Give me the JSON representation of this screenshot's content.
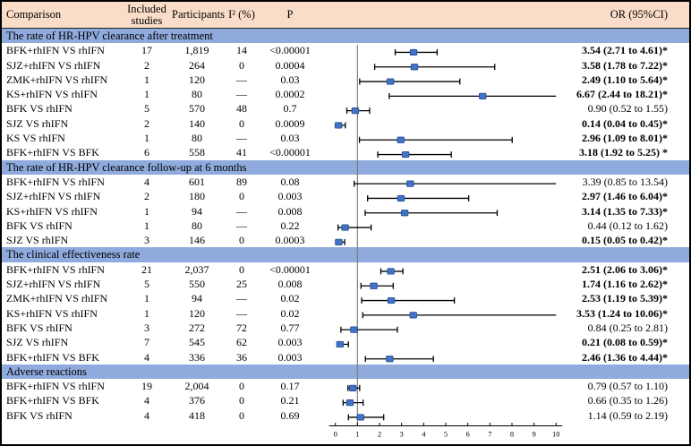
{
  "figure": {
    "columns": {
      "comparison": "Comparison",
      "studies": "Included studies",
      "participants": "Participants",
      "i2": "I² (%)",
      "p": "P",
      "or": "OR (95%CI)"
    },
    "colors": {
      "header_bg": "#FADDC8",
      "band_bg": "#8FAADC",
      "marker": "#4472C4",
      "marker_border": "#1F4E96",
      "ci_line": "#000000",
      "ref_line": "#7F7F7F",
      "axis": "#000000",
      "text": "#000000"
    }
  },
  "chart_data": {
    "type": "forest",
    "x_range": [
      0,
      10
    ],
    "x_ticks": [
      "0",
      "1",
      "2",
      "3",
      "4",
      "5",
      "6",
      "7",
      "8",
      "9",
      "10"
    ],
    "reference_line": 1,
    "legend_position": "none",
    "grid": false,
    "sections": [
      {
        "title": "The rate of HR-HPV clearance after treatment",
        "rows": [
          {
            "comparison": "BFK+rhIFN VS rhIFN",
            "studies": "17",
            "participants": "1,819",
            "i2": "14",
            "p": "<0.00001",
            "or_text": "3.54 (2.71 to 4.61)*",
            "or": 3.54,
            "ci_low": 2.71,
            "ci_high": 4.61,
            "significant": true
          },
          {
            "comparison": "SJZ+rhIFN VS rhIFN",
            "studies": "2",
            "participants": "264",
            "i2": "0",
            "p": "0.0004",
            "or_text": "3.58 (1.78 to 7.22)*",
            "or": 3.58,
            "ci_low": 1.78,
            "ci_high": 7.22,
            "significant": true
          },
          {
            "comparison": "ZMK+rhIFN VS rhIFN",
            "studies": "1",
            "participants": "120",
            "i2": "—",
            "p": "0.03",
            "or_text": "2.49 (1.10 to 5.64)*",
            "or": 2.49,
            "ci_low": 1.1,
            "ci_high": 5.64,
            "significant": true
          },
          {
            "comparison": "KS+rhIFN VS rhIFN",
            "studies": "1",
            "participants": "80",
            "i2": "—",
            "p": "0.0002",
            "or_text": "6.67 (2.44 to 18.21)*",
            "or": 6.67,
            "ci_low": 2.44,
            "ci_high": 18.21,
            "significant": true
          },
          {
            "comparison": "BFK VS rhIFN",
            "studies": "5",
            "participants": "570",
            "i2": "48",
            "p": "0.7",
            "or_text": "0.90 (0.52 to 1.55)",
            "or": 0.9,
            "ci_low": 0.52,
            "ci_high": 1.55,
            "significant": false
          },
          {
            "comparison": "SJZ VS rhIFN",
            "studies": "2",
            "participants": "140",
            "i2": "0",
            "p": "0.0009",
            "or_text": "0.14 (0.04 to 0.45)*",
            "or": 0.14,
            "ci_low": 0.04,
            "ci_high": 0.45,
            "significant": true
          },
          {
            "comparison": "KS VS rhIFN",
            "studies": "1",
            "participants": "80",
            "i2": "—",
            "p": "0.03",
            "or_text": "2.96 (1.09 to 8.01)*",
            "or": 2.96,
            "ci_low": 1.09,
            "ci_high": 8.01,
            "significant": true
          },
          {
            "comparison": "BFK+rhIFN VS BFK",
            "studies": "6",
            "participants": "558",
            "i2": "41",
            "p": "<0.00001",
            "or_text": "3.18 (1.92 to 5.25) *",
            "or": 3.18,
            "ci_low": 1.92,
            "ci_high": 5.25,
            "significant": true
          }
        ]
      },
      {
        "title": "The rate of HR-HPV clearance follow-up at 6 months",
        "rows": [
          {
            "comparison": "BFK+rhIFN VS rhIFN",
            "studies": "4",
            "participants": "601",
            "i2": "89",
            "p": "0.08",
            "or_text": "3.39 (0.85 to 13.54)",
            "or": 3.39,
            "ci_low": 0.85,
            "ci_high": 13.54,
            "significant": false
          },
          {
            "comparison": "SJZ+rhIFN VS rhIFN",
            "studies": "2",
            "participants": "180",
            "i2": "0",
            "p": "0.003",
            "or_text": "2.97 (1.46 to 6.04)*",
            "or": 2.97,
            "ci_low": 1.46,
            "ci_high": 6.04,
            "significant": true
          },
          {
            "comparison": "KS+rhIFN VS rhIFN",
            "studies": "1",
            "participants": "94",
            "i2": "—",
            "p": "0.008",
            "or_text": "3.14 (1.35 to 7.33)*",
            "or": 3.14,
            "ci_low": 1.35,
            "ci_high": 7.33,
            "significant": true
          },
          {
            "comparison": "BFK VS rhIFN",
            "studies": "1",
            "participants": "80",
            "i2": "—",
            "p": "0.22",
            "or_text": "0.44 (0.12 to 1.62)",
            "or": 0.44,
            "ci_low": 0.12,
            "ci_high": 1.62,
            "significant": false
          },
          {
            "comparison": "SJZ VS rhIFN",
            "studies": "3",
            "participants": "146",
            "i2": "0",
            "p": "0.0003",
            "or_text": "0.15 (0.05 to 0.42)*",
            "or": 0.15,
            "ci_low": 0.05,
            "ci_high": 0.42,
            "significant": true
          }
        ]
      },
      {
        "title": "The clinical effectiveness rate",
        "rows": [
          {
            "comparison": "BFK+rhIFN VS rhIFN",
            "studies": "21",
            "participants": "2,037",
            "i2": "0",
            "p": "<0.00001",
            "or_text": "2.51 (2.06 to 3.06)*",
            "or": 2.51,
            "ci_low": 2.06,
            "ci_high": 3.06,
            "significant": true
          },
          {
            "comparison": "SJZ+rhIFN VS rhIFN",
            "studies": "5",
            "participants": "550",
            "i2": "25",
            "p": "0.008",
            "or_text": "1.74 (1.16 to 2.62)*",
            "or": 1.74,
            "ci_low": 1.16,
            "ci_high": 2.62,
            "significant": true
          },
          {
            "comparison": "ZMK+rhIFN VS rhIFN",
            "studies": "1",
            "participants": "94",
            "i2": "—",
            "p": "0.02",
            "or_text": "2.53 (1.19 to 5.39)*",
            "or": 2.53,
            "ci_low": 1.19,
            "ci_high": 5.39,
            "significant": true
          },
          {
            "comparison": "KS+rhIFN VS rhIFN",
            "studies": "1",
            "participants": "120",
            "i2": "—",
            "p": "0.02",
            "or_text": "3.53 (1.24 to 10.06)*",
            "or": 3.53,
            "ci_low": 1.24,
            "ci_high": 10.06,
            "significant": true
          },
          {
            "comparison": "BFK VS rhIFN",
            "studies": "3",
            "participants": "272",
            "i2": "72",
            "p": "0.77",
            "or_text": "0.84 (0.25 to 2.81)",
            "or": 0.84,
            "ci_low": 0.25,
            "ci_high": 2.81,
            "significant": false
          },
          {
            "comparison": "SJZ VS rhIFN",
            "studies": "7",
            "participants": "545",
            "i2": "62",
            "p": "0.003",
            "or_text": "0.21 (0.08 to 0.59)*",
            "or": 0.21,
            "ci_low": 0.08,
            "ci_high": 0.59,
            "significant": true
          },
          {
            "comparison": "BFK+rhIFN VS BFK",
            "studies": "4",
            "participants": "336",
            "i2": "36",
            "p": "0.003",
            "or_text": "2.46 (1.36 to 4.44)*",
            "or": 2.46,
            "ci_low": 1.36,
            "ci_high": 4.44,
            "significant": true
          }
        ]
      },
      {
        "title": "Adverse reactions",
        "rows": [
          {
            "comparison": "BFK+rhIFN VS rhIFN",
            "studies": "19",
            "participants": "2,004",
            "i2": "0",
            "p": "0.17",
            "or_text": "0.79 (0.57 to 1.10)",
            "or": 0.79,
            "ci_low": 0.57,
            "ci_high": 1.1,
            "significant": false
          },
          {
            "comparison": "BFK+rhIFN VS BFK",
            "studies": "4",
            "participants": "376",
            "i2": "0",
            "p": "0.21",
            "or_text": "0.66 (0.35 to 1.26)",
            "or": 0.66,
            "ci_low": 0.35,
            "ci_high": 1.26,
            "significant": false
          },
          {
            "comparison": "BFK VS rhIFN",
            "studies": "4",
            "participants": "418",
            "i2": "0",
            "p": "0.69",
            "or_text": "1.14 (0.59 to 2.19)",
            "or": 1.14,
            "ci_low": 0.59,
            "ci_high": 2.19,
            "significant": false
          }
        ]
      }
    ]
  }
}
